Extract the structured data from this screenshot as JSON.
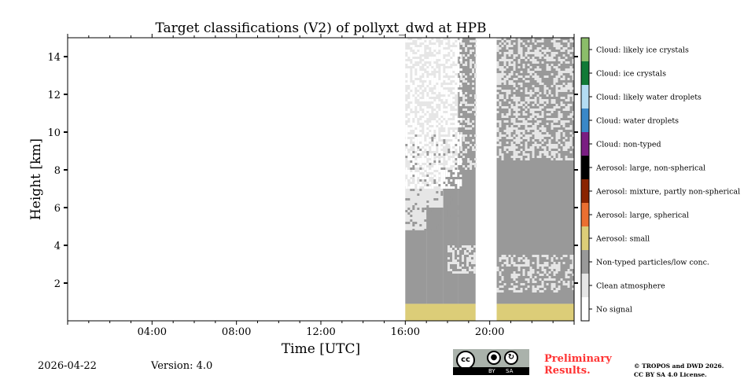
{
  "chart_data": {
    "type": "heatmap",
    "title": "Target classifications (V2) of pollyxt_dwd at HPB",
    "xlabel": "Time [UTC]",
    "ylabel": "Height [km]",
    "xlim": [
      0,
      24
    ],
    "ylim": [
      0,
      15
    ],
    "xticks": [
      {
        "v": 4,
        "label": "04:00"
      },
      {
        "v": 8,
        "label": "08:00"
      },
      {
        "v": 12,
        "label": "12:00"
      },
      {
        "v": 16,
        "label": "16:00"
      },
      {
        "v": 20,
        "label": "20:00"
      }
    ],
    "yticks": [
      {
        "v": 2,
        "label": "2"
      },
      {
        "v": 4,
        "label": "4"
      },
      {
        "v": 6,
        "label": "6"
      },
      {
        "v": 8,
        "label": "8"
      },
      {
        "v": 10,
        "label": "10"
      },
      {
        "v": 12,
        "label": "12"
      },
      {
        "v": 14,
        "label": "14"
      }
    ],
    "classes": [
      {
        "label": "Cloud: likely ice crystals",
        "color": "#8bbd6a"
      },
      {
        "label": "Cloud: ice crystals",
        "color": "#117a36"
      },
      {
        "label": "Cloud: likely water droplets",
        "color": "#b3dcf3"
      },
      {
        "label": "Cloud: water droplets",
        "color": "#3a88c8"
      },
      {
        "label": "Cloud: non-typed",
        "color": "#7a1e82"
      },
      {
        "label": "Aerosol: large, non-spherical",
        "color": "#000000"
      },
      {
        "label": "Aerosol: mixture, partly non-spherical",
        "color": "#8a2400"
      },
      {
        "label": "Aerosol: large, spherical",
        "color": "#eb6f31"
      },
      {
        "label": "Aerosol: small",
        "color": "#dccd78"
      },
      {
        "label": "Non-typed particles/low conc.",
        "color": "#999999"
      },
      {
        "label": "Clean atmosphere",
        "color": "#e6e6e6"
      },
      {
        "label": "No signal",
        "color": "#ffffff"
      }
    ],
    "regions": [
      {
        "cls": 10,
        "t0": 16.0,
        "t1": 19.33,
        "h0": 0,
        "h1": 15
      },
      {
        "cls": 10,
        "t0": 20.33,
        "t1": 24,
        "h0": 0,
        "h1": 15
      },
      {
        "cls": 9,
        "t0": 16.0,
        "t1": 17.0,
        "h0": 0.9,
        "h1": 4.8
      },
      {
        "cls": 9,
        "t0": 17.0,
        "t1": 17.8,
        "h0": 0.9,
        "h1": 6.0
      },
      {
        "cls": 9,
        "t0": 17.8,
        "t1": 18.5,
        "h0": 0.9,
        "h1": 8.0
      },
      {
        "cls": 9,
        "t0": 18.5,
        "t1": 19.33,
        "h0": 0.9,
        "h1": 15
      },
      {
        "cls": 9,
        "t0": 20.33,
        "t1": 24,
        "h0": 0.9,
        "h1": 15
      },
      {
        "cls": 8,
        "t0": 16.0,
        "t1": 19.33,
        "h0": 0,
        "h1": 0.9
      },
      {
        "cls": 8,
        "t0": 20.33,
        "t1": 24,
        "h0": 0,
        "h1": 0.9
      }
    ],
    "speckle": [
      {
        "cls": 10,
        "t0": 20.33,
        "t1": 24,
        "h0": 8.5,
        "h1": 15,
        "density": 0.45
      },
      {
        "cls": 10,
        "t0": 20.33,
        "t1": 24,
        "h0": 1.5,
        "h1": 3.5,
        "density": 0.4
      },
      {
        "cls": 10,
        "t0": 18.0,
        "t1": 19.33,
        "h0": 2.5,
        "h1": 4.0,
        "density": 0.5
      },
      {
        "cls": 10,
        "t0": 18.6,
        "t1": 19.33,
        "h0": 8.0,
        "h1": 15,
        "density": 0.35
      },
      {
        "cls": 9,
        "t0": 16.0,
        "t1": 18.5,
        "h0": 4.8,
        "h1": 10,
        "density": 0.2
      },
      {
        "cls": 11,
        "t0": 16.0,
        "t1": 18.6,
        "h0": 7,
        "h1": 15,
        "density": 0.5
      }
    ]
  },
  "footer": {
    "date": "2026-04-22",
    "version": "Version: 4.0",
    "license_badge": {
      "cc": "cc",
      "by": "BY",
      "sa": "SA"
    },
    "preliminary": [
      "Preliminary",
      "Results."
    ],
    "copyright": [
      "© TROPOS and DWD 2026.",
      "CC BY SA 4.0 License."
    ]
  }
}
